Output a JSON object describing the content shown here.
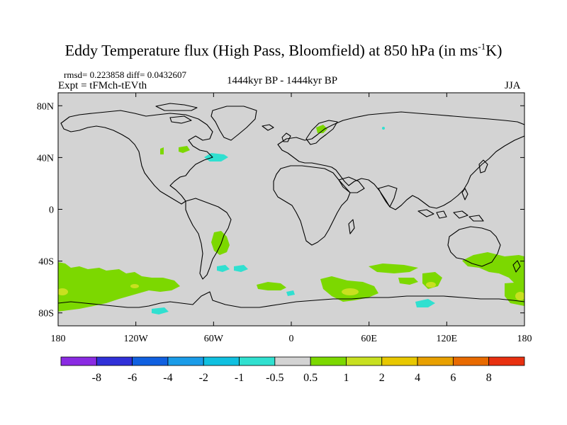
{
  "title": {
    "main": "Eddy Temperature flux (High Pass, Bloomfield) at 850 hPa (in ms",
    "sup": "-1",
    "tail": "K)"
  },
  "header": {
    "stats": "rmsd= 0.223858 diff= 0.0432607",
    "expt": "Expt = tFMch-tEVth",
    "period": "1444kyr BP - 1444kyr BP",
    "season": "JJA"
  },
  "map": {
    "lon_range": [
      -180,
      180
    ],
    "lat_range": [
      -90,
      90
    ],
    "background_color": "#d3d3d3",
    "x_ticks": [
      {
        "lon": -180,
        "label": "180"
      },
      {
        "lon": -120,
        "label": "120W"
      },
      {
        "lon": -60,
        "label": "60W"
      },
      {
        "lon": 0,
        "label": "0"
      },
      {
        "lon": 60,
        "label": "60E"
      },
      {
        "lon": 120,
        "label": "120E"
      },
      {
        "lon": 180,
        "label": "180"
      }
    ],
    "y_ticks": [
      {
        "lat": 80,
        "label": "80N"
      },
      {
        "lat": 40,
        "label": "40N"
      },
      {
        "lat": 0,
        "label": "0"
      },
      {
        "lat": -40,
        "label": "40S"
      },
      {
        "lat": -80,
        "label": "80S"
      }
    ]
  },
  "colorbar": {
    "colors": [
      "#8a2be2",
      "#3030d8",
      "#1060e0",
      "#1a9ce8",
      "#10c0e0",
      "#30e0d0",
      "#d3d3d3",
      "#7cd800",
      "#c8e020",
      "#e8c800",
      "#e8a000",
      "#e86a00",
      "#e83010"
    ],
    "labels": [
      "-8",
      "-6",
      "-4",
      "-2",
      "-1",
      "-0.5",
      "0.5",
      "1",
      "2",
      "4",
      "6",
      "8"
    ]
  }
}
